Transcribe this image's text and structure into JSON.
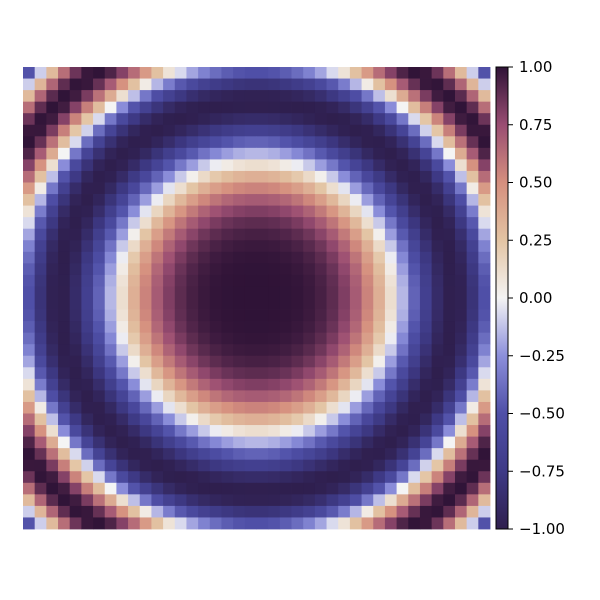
{
  "chart_data": {
    "type": "heatmap",
    "title": "",
    "xlabel": "",
    "ylabel": "",
    "grid": false,
    "axes_visible": false,
    "shape": [
      40,
      40
    ],
    "value_function": "cos(0.011 * ((i - 19.5)^2 + (j - 19.5)^2) ^ 1.6)  (i = row from top, j = column from left, 0-based)",
    "clim": [
      -1.0,
      1.0
    ],
    "colormap": "twilight_shifted",
    "colorbar": {
      "location": "right",
      "ticks": [
        1.0,
        0.75,
        0.5,
        0.25,
        0.0,
        -0.25,
        -0.5,
        -0.75,
        -1.0
      ],
      "tick_labels": [
        "1.00",
        "0.75",
        "0.50",
        "0.25",
        "0.00",
        "−0.25",
        "−0.50",
        "−0.75",
        "−1.00"
      ]
    },
    "colors": {
      "min": "#2f1f4e",
      "neg_mid": "#4f4fa7",
      "neg_light": "#b7b9f0",
      "zero": "#f4f4f4",
      "pos_light": "#e3c4a3",
      "pos_mid": "#bf6878",
      "max": "#2f1337"
    }
  }
}
